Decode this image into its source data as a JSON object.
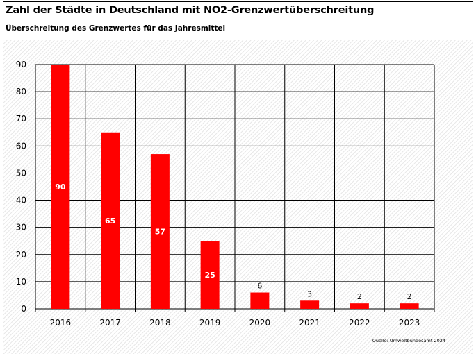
{
  "title": "Zahl der Städte in Deutschland mit NO2-Grenzwertüberschreitung",
  "subtitle": "Überschreitung des Grenzwertes für das Jahresmittel",
  "source": "Quelle: Umweltbundesamt 2024",
  "colors": {
    "bar": "#ff0000",
    "grid": "#000000",
    "background_stripe": "#e6e6e6"
  },
  "chart_data": {
    "type": "bar",
    "categories": [
      "2016",
      "2017",
      "2018",
      "2019",
      "2020",
      "2021",
      "2022",
      "2023"
    ],
    "values": [
      90,
      65,
      57,
      25,
      6,
      3,
      2,
      2
    ],
    "title": "Zahl der Städte in Deutschland mit NO2-Grenzwertüberschreitung",
    "subtitle": "Überschreitung des Grenzwertes für das Jahresmittel",
    "xlabel": "",
    "ylabel": "",
    "ylim": [
      0,
      90
    ],
    "yticks": [
      0,
      10,
      20,
      30,
      40,
      50,
      60,
      70,
      80,
      90
    ],
    "grid": true,
    "legend": "none",
    "data_labels": true
  }
}
